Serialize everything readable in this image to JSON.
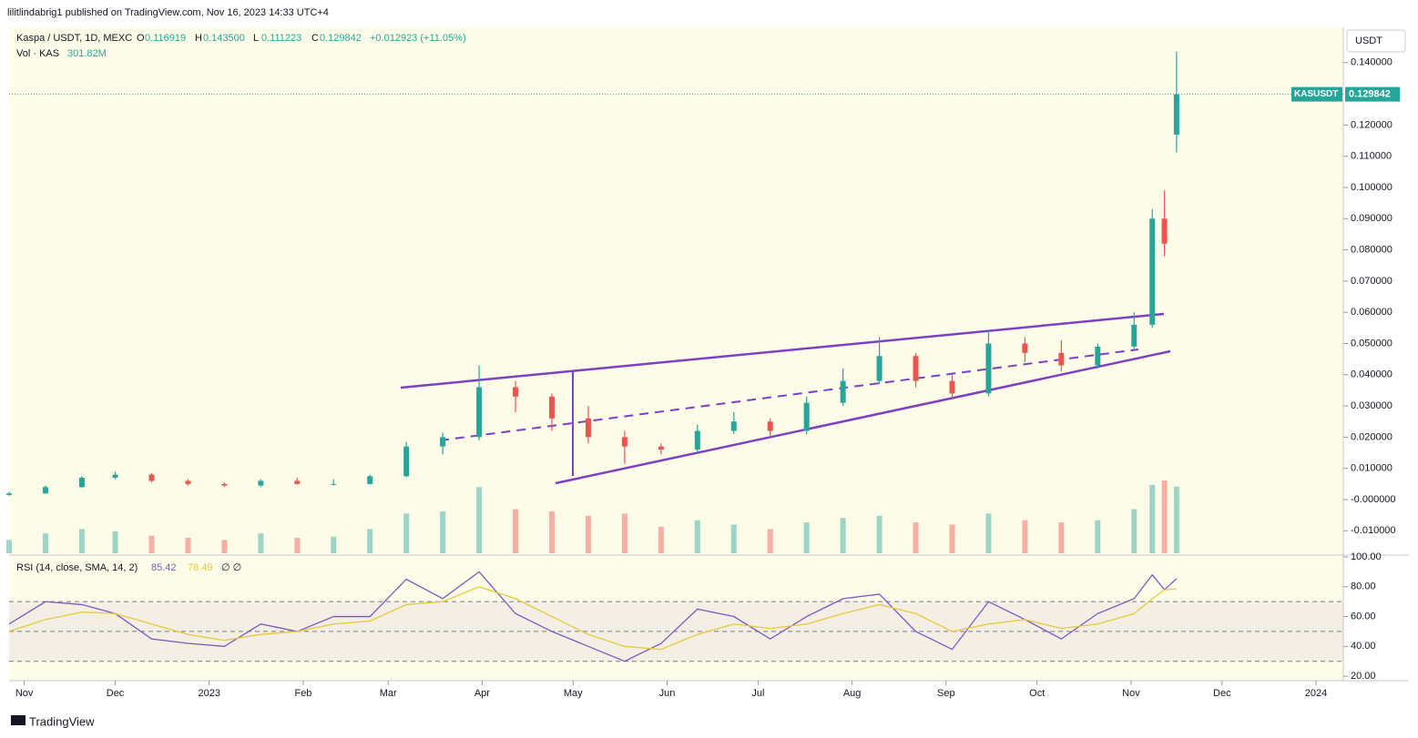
{
  "header": {
    "byline": "lilitlindabrig1 published on TradingView.com, Nov 16, 2023 14:33 UTC+4",
    "symbol": "Kaspa / USDT, 1D, MEXC",
    "ohlc": [
      {
        "label": "O",
        "value": "0.116919"
      },
      {
        "label": "H",
        "value": "0.143500"
      },
      {
        "label": "L",
        "value": "0.111223"
      },
      {
        "label": "C",
        "value": "0.129842"
      }
    ],
    "change": "+0.012923 (+11.05%)",
    "volume_label": "Vol · KAS",
    "volume_value": "301.82M",
    "currency": "USDT",
    "price_tag_symbol": "KASUSDT",
    "price_tag_value": "0.129842",
    "footer": "TradingView"
  },
  "chart_data": [
    {
      "type": "candlestick",
      "name": "KASUSDT",
      "up_color": "#26a69a",
      "down_color": "#ef5350",
      "last_price": 0.129842,
      "x": [
        "2022-10-27",
        "2022-11-08",
        "2022-11-20",
        "2022-12-01",
        "2022-12-13",
        "2022-12-25",
        "2023-01-06",
        "2023-01-18",
        "2023-01-30",
        "2023-02-11",
        "2023-02-23",
        "2023-03-07",
        "2023-03-19",
        "2023-03-31",
        "2023-04-12",
        "2023-04-24",
        "2023-05-06",
        "2023-05-18",
        "2023-05-30",
        "2023-06-11",
        "2023-06-23",
        "2023-07-05",
        "2023-07-17",
        "2023-07-29",
        "2023-08-10",
        "2023-08-22",
        "2023-09-03",
        "2023-09-15",
        "2023-09-27",
        "2023-10-09",
        "2023-10-21",
        "2023-11-02",
        "2023-11-08",
        "2023-11-12",
        "2023-11-16"
      ],
      "open": [
        0.0015,
        0.002,
        0.004,
        0.007,
        0.008,
        0.006,
        0.005,
        0.0045,
        0.006,
        0.005,
        0.005,
        0.0075,
        0.017,
        0.02,
        0.036,
        0.033,
        0.026,
        0.02,
        0.017,
        0.016,
        0.022,
        0.025,
        0.022,
        0.031,
        0.038,
        0.046,
        0.038,
        0.034,
        0.05,
        0.047,
        0.043,
        0.049,
        0.056,
        0.09,
        0.116919
      ],
      "high": [
        0.0025,
        0.0045,
        0.0075,
        0.009,
        0.0085,
        0.0065,
        0.0055,
        0.0065,
        0.007,
        0.0065,
        0.008,
        0.0185,
        0.0215,
        0.043,
        0.038,
        0.034,
        0.03,
        0.022,
        0.018,
        0.024,
        0.028,
        0.026,
        0.033,
        0.042,
        0.052,
        0.047,
        0.04,
        0.054,
        0.052,
        0.051,
        0.05,
        0.06,
        0.093,
        0.099,
        0.1435
      ],
      "low": [
        0.0012,
        0.0018,
        0.0038,
        0.0065,
        0.0055,
        0.0045,
        0.004,
        0.004,
        0.0048,
        0.0045,
        0.0048,
        0.0072,
        0.0145,
        0.019,
        0.028,
        0.022,
        0.018,
        0.0115,
        0.0145,
        0.015,
        0.021,
        0.02,
        0.021,
        0.03,
        0.037,
        0.036,
        0.032,
        0.033,
        0.044,
        0.041,
        0.042,
        0.048,
        0.055,
        0.078,
        0.111223
      ],
      "close": [
        0.002,
        0.004,
        0.007,
        0.008,
        0.006,
        0.005,
        0.0045,
        0.006,
        0.005,
        0.005,
        0.0075,
        0.017,
        0.02,
        0.036,
        0.033,
        0.026,
        0.02,
        0.017,
        0.016,
        0.022,
        0.025,
        0.022,
        0.031,
        0.038,
        0.046,
        0.038,
        0.034,
        0.05,
        0.047,
        0.043,
        0.049,
        0.056,
        0.09,
        0.082,
        0.129842
      ],
      "volume": [
        60,
        90,
        110,
        100,
        80,
        70,
        60,
        90,
        70,
        75,
        110,
        180,
        190,
        300,
        200,
        190,
        170,
        180,
        120,
        150,
        130,
        110,
        140,
        160,
        170,
        140,
        130,
        180,
        150,
        140,
        150,
        200,
        310,
        330,
        301.82
      ],
      "xlim": [
        "2022-10-27",
        "2024-01-10"
      ],
      "xticks": [
        {
          "value": "2022-11-01",
          "label": "Nov"
        },
        {
          "value": "2022-12-01",
          "label": "Dec"
        },
        {
          "value": "2023-01-01",
          "label": "2023"
        },
        {
          "value": "2023-02-01",
          "label": "Feb"
        },
        {
          "value": "2023-03-01",
          "label": "Mar"
        },
        {
          "value": "2023-04-01",
          "label": "Apr"
        },
        {
          "value": "2023-05-01",
          "label": "May"
        },
        {
          "value": "2023-06-01",
          "label": "Jun"
        },
        {
          "value": "2023-07-01",
          "label": "Jul"
        },
        {
          "value": "2023-08-01",
          "label": "Aug"
        },
        {
          "value": "2023-09-01",
          "label": "Sep"
        },
        {
          "value": "2023-10-01",
          "label": "Oct"
        },
        {
          "value": "2023-11-01",
          "label": "Nov"
        },
        {
          "value": "2023-12-01",
          "label": "Dec"
        },
        {
          "value": "2024-01-01",
          "label": "2024"
        }
      ],
      "ylim": [
        -0.0172,
        0.1513
      ],
      "yticks": [
        {
          "value": 0.14,
          "label": "0.140000"
        },
        {
          "value": 0.12,
          "label": "0.120000"
        },
        {
          "value": 0.11,
          "label": "0.110000"
        },
        {
          "value": 0.1,
          "label": "0.100000"
        },
        {
          "value": 0.09,
          "label": "0.090000"
        },
        {
          "value": 0.08,
          "label": "0.080000"
        },
        {
          "value": 0.07,
          "label": "0.070000"
        },
        {
          "value": 0.06,
          "label": "0.060000"
        },
        {
          "value": 0.05,
          "label": "0.050000"
        },
        {
          "value": 0.04,
          "label": "0.040000"
        },
        {
          "value": 0.03,
          "label": "0.030000"
        },
        {
          "value": 0.02,
          "label": "0.020000"
        },
        {
          "value": 0.01,
          "label": "0.010000"
        },
        {
          "value": 0,
          "label": "-0.000000"
        },
        {
          "value": -0.01,
          "label": "-0.010000"
        }
      ]
    },
    {
      "type": "line",
      "title": "RSI (14, close, SMA, 14, 2)",
      "value_labels": [
        "85.42",
        "78.49"
      ],
      "extra": "∅ ∅",
      "series": [
        {
          "name": "RSI",
          "color": "#7e57c2",
          "values": [
            55,
            70,
            68,
            62,
            45,
            42,
            40,
            55,
            50,
            60,
            60,
            85,
            72,
            90,
            62,
            50,
            40,
            30,
            42,
            65,
            60,
            45,
            60,
            72,
            75,
            50,
            38,
            70,
            58,
            45,
            62,
            72,
            88,
            78,
            85.42
          ]
        },
        {
          "name": "SMA",
          "color": "#e8c93a",
          "values": [
            50,
            58,
            63,
            62,
            55,
            48,
            44,
            48,
            50,
            55,
            57,
            68,
            70,
            80,
            72,
            60,
            48,
            40,
            38,
            48,
            55,
            52,
            55,
            62,
            68,
            62,
            50,
            55,
            58,
            52,
            55,
            62,
            72,
            78,
            78.49
          ]
        }
      ],
      "ylim": [
        17,
        100
      ],
      "bands": [
        70,
        50,
        30
      ],
      "yticks": [
        {
          "value": 100,
          "label": "100.00"
        },
        {
          "value": 80,
          "label": "80.00"
        },
        {
          "value": 60,
          "label": "60.00"
        },
        {
          "value": 40,
          "label": "40.00"
        },
        {
          "value": 20,
          "label": "20.00"
        }
      ]
    }
  ]
}
